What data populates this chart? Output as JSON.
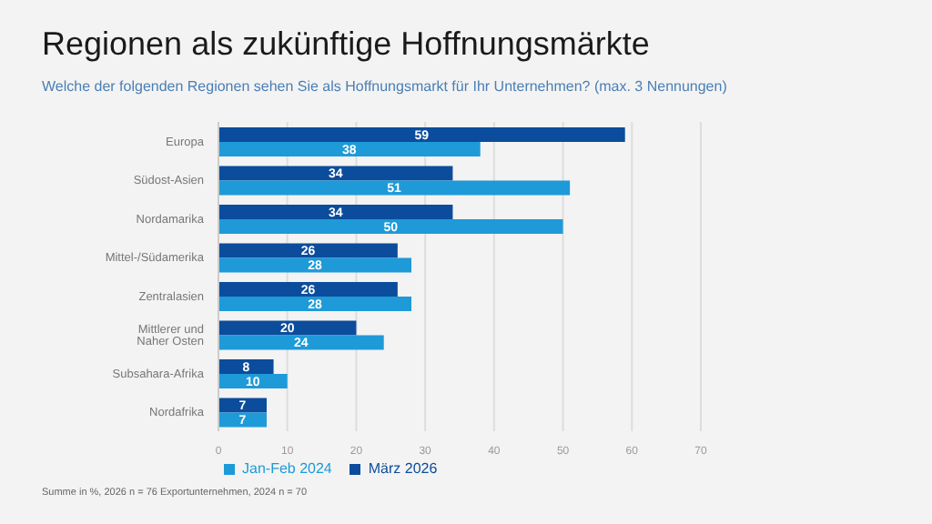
{
  "chart_data": {
    "type": "bar",
    "orientation": "horizontal",
    "title": "Regionen als zukünftige Hoffnungsmärkte",
    "subtitle": "Welche der folgenden Regionen sehen Sie als Hoffnungsmarkt für Ihr Unternehmen? (max. 3 Nennungen)",
    "categories": [
      "Europa",
      "Südost-Asien",
      "Nordamarika",
      "Mittel-/Südamerika",
      "Zentralasien",
      "Mittlerer und Naher Osten",
      "Subsahara-Afrika",
      "Nordafrika"
    ],
    "series": [
      {
        "name": "März 2026",
        "color": "#0b4c9c",
        "values": [
          59,
          34,
          34,
          26,
          26,
          20,
          8,
          7
        ]
      },
      {
        "name": "Jan-Feb 2024",
        "color": "#1e9ad8",
        "values": [
          38,
          51,
          50,
          28,
          28,
          24,
          10,
          7
        ]
      }
    ],
    "xlim": [
      0,
      70
    ],
    "xticks": [
      0,
      10,
      20,
      30,
      40,
      50,
      60,
      70
    ],
    "grid": "x",
    "legend": "bottom",
    "data_labels": true,
    "annotations": [
      "Summe in %, 2026 n = 76 Exportunternehmen, 2024 n = 70"
    ]
  }
}
